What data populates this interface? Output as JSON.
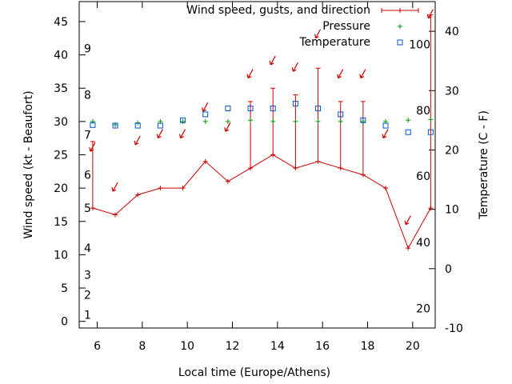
{
  "chart_data": {
    "type": "line",
    "title": "",
    "xlabel": "Local time (Europe/Athens)",
    "ylabel": "Wind speed (kt - Beaufort)",
    "y2label": "Temperature (C - F)",
    "xlim": [
      5.2,
      21
    ],
    "ylim": [
      -1,
      48
    ],
    "y2lim": [
      -10,
      45
    ],
    "x_ticks": [
      6,
      8,
      10,
      12,
      14,
      16,
      18,
      20
    ],
    "y_ticks": [
      0,
      5,
      10,
      15,
      20,
      25,
      30,
      35,
      40,
      45
    ],
    "y2_ticks": [
      -10,
      0,
      10,
      20,
      30,
      40
    ],
    "beaufort_scale": [
      {
        "label": "1",
        "kt": 1
      },
      {
        "label": "2",
        "kt": 4
      },
      {
        "label": "3",
        "kt": 7
      },
      {
        "label": "4",
        "kt": 11
      },
      {
        "label": "5",
        "kt": 17
      },
      {
        "label": "6",
        "kt": 22
      },
      {
        "label": "7",
        "kt": 28
      },
      {
        "label": "8",
        "kt": 34
      },
      {
        "label": "9",
        "kt": 41
      }
    ],
    "fahrenheit_scale": [
      {
        "label": "20",
        "celsius": -6.7
      },
      {
        "label": "40",
        "celsius": 4.4
      },
      {
        "label": "60",
        "celsius": 15.6
      },
      {
        "label": "80",
        "celsius": 26.7
      },
      {
        "label": "100",
        "celsius": 37.8
      }
    ],
    "legend": [
      {
        "label": "Wind speed, gusts, and direction",
        "color": "#cc0000"
      },
      {
        "label": "Pressure",
        "color": "#009900"
      },
      {
        "label": "Temperature",
        "color": "#0055cc"
      }
    ],
    "x": [
      5.8,
      6.8,
      7.8,
      8.8,
      9.8,
      10.8,
      11.8,
      12.8,
      13.8,
      14.8,
      15.8,
      16.8,
      17.8,
      18.8,
      19.8,
      20.8
    ],
    "series": [
      {
        "name": "Wind speed",
        "axis": "y",
        "values": [
          17,
          16,
          19,
          20,
          20,
          24,
          21,
          23,
          25,
          23,
          24,
          23,
          22,
          20,
          11,
          17
        ]
      },
      {
        "name": "Gusts",
        "axis": "y",
        "values": [
          27,
          null,
          null,
          null,
          null,
          null,
          null,
          33,
          35,
          34,
          38,
          33,
          33,
          null,
          null,
          46
        ]
      },
      {
        "name": "Pressure",
        "axis": "y",
        "values": [
          30,
          29.5,
          29.8,
          30,
          30,
          30,
          30,
          30.2,
          30,
          30,
          30,
          30,
          30,
          30,
          30.2,
          30.3
        ]
      },
      {
        "name": "Temperature",
        "axis": "y2",
        "values": [
          24.2,
          24.1,
          24.1,
          24.1,
          25,
          26,
          27,
          27,
          27,
          27.8,
          27,
          26,
          25,
          24.1,
          23,
          23
        ]
      },
      {
        "name": "Wind direction",
        "axis": "y",
        "arrow_y": [
          26,
          20,
          27,
          28,
          28,
          32,
          29,
          37,
          39,
          38,
          43,
          37,
          37,
          28,
          15,
          46
        ]
      }
    ]
  }
}
